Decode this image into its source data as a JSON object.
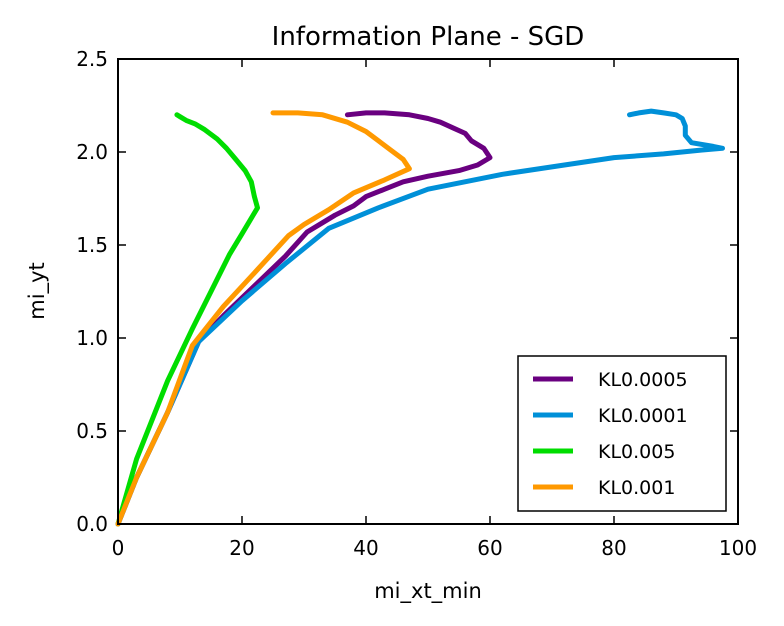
{
  "chart_data": {
    "type": "line",
    "title": "Information Plane - SGD",
    "xlabel": "mi_xt_min",
    "ylabel": "mi_yt",
    "xlim": [
      0,
      100
    ],
    "ylim": [
      0,
      2.5
    ],
    "xticks": [
      "0",
      "20",
      "40",
      "60",
      "80",
      "100"
    ],
    "yticks": [
      "0.0",
      "0.5",
      "1.0",
      "1.5",
      "2.0",
      "2.5"
    ],
    "grid": false,
    "legend_position": "lower-right",
    "series": [
      {
        "name": "KL0.0005",
        "color": "#6a0080",
        "x": [
          0,
          3,
          8,
          13,
          17,
          22,
          27,
          30.5,
          33,
          35,
          38,
          40,
          43,
          46,
          50,
          55,
          58,
          60,
          59,
          57,
          56,
          54,
          52,
          50,
          47,
          43,
          40,
          37
        ],
        "y": [
          0.0,
          0.25,
          0.6,
          0.98,
          1.12,
          1.28,
          1.44,
          1.57,
          1.62,
          1.66,
          1.71,
          1.76,
          1.8,
          1.84,
          1.87,
          1.9,
          1.93,
          1.97,
          2.02,
          2.06,
          2.1,
          2.13,
          2.16,
          2.18,
          2.2,
          2.21,
          2.21,
          2.2
        ]
      },
      {
        "name": "KL0.0001",
        "color": "#0090d8",
        "x": [
          0,
          3,
          8,
          13,
          20,
          27,
          34,
          42,
          50,
          62,
          72,
          80,
          88,
          94,
          97.5,
          96,
          92.5,
          91.5,
          91.5,
          91,
          90,
          88,
          86,
          84,
          82.5
        ],
        "y": [
          0.0,
          0.25,
          0.6,
          0.98,
          1.2,
          1.4,
          1.59,
          1.7,
          1.8,
          1.88,
          1.93,
          1.97,
          1.99,
          2.01,
          2.02,
          2.03,
          2.05,
          2.09,
          2.14,
          2.18,
          2.2,
          2.21,
          2.22,
          2.21,
          2.2
        ]
      },
      {
        "name": "KL0.005",
        "color": "#00dd00",
        "x": [
          0,
          3,
          8,
          12,
          15,
          18,
          20,
          22.5,
          22,
          21.5,
          20.5,
          19,
          17.5,
          16,
          14,
          12.5,
          11,
          10,
          9.5
        ],
        "y": [
          0.0,
          0.35,
          0.77,
          1.05,
          1.25,
          1.45,
          1.56,
          1.7,
          1.76,
          1.84,
          1.9,
          1.96,
          2.02,
          2.07,
          2.12,
          2.15,
          2.17,
          2.19,
          2.2
        ]
      },
      {
        "name": "KL0.001",
        "color": "#ff9900",
        "x": [
          0,
          3,
          8,
          12,
          17,
          22,
          27.5,
          30,
          34,
          38,
          43,
          47,
          46,
          44,
          42,
          40,
          37,
          33,
          29,
          26,
          25
        ],
        "y": [
          0.0,
          0.25,
          0.6,
          0.96,
          1.17,
          1.35,
          1.55,
          1.61,
          1.69,
          1.78,
          1.85,
          1.91,
          1.96,
          2.01,
          2.06,
          2.11,
          2.16,
          2.2,
          2.21,
          2.21,
          2.21
        ]
      }
    ]
  }
}
